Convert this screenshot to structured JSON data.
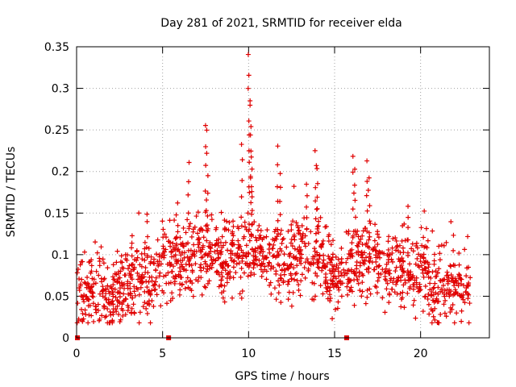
{
  "chart_data": {
    "type": "scatter",
    "title": "Day 281 of 2021, SRMTID for receiver elda",
    "xlabel": "GPS time / hours",
    "ylabel": "SRMTID / TECUs",
    "xlim": [
      0,
      24
    ],
    "ylim": [
      0,
      0.35
    ],
    "x_ticks": [
      0,
      5,
      10,
      15,
      20
    ],
    "x_tick_labels": [
      "0",
      "5",
      "10",
      "15",
      "20"
    ],
    "y_ticks": [
      0,
      0.05,
      0.1,
      0.15,
      0.2,
      0.25,
      0.3,
      0.35
    ],
    "y_tick_labels": [
      "0",
      "0.05",
      "0.1",
      "0.15",
      "0.2",
      "0.25",
      "0.3",
      "0.35"
    ],
    "grid": true,
    "marker": "plus",
    "color": "#e00000",
    "x_end_hours": 22.9,
    "zero_value_hours": [
      0.05,
      5.35,
      15.7
    ],
    "baseline_profile": {
      "x": [
        0,
        1,
        2,
        3,
        4,
        5,
        6,
        7,
        8,
        9,
        10,
        11,
        12,
        13,
        14,
        15,
        16,
        17,
        18,
        19,
        20,
        21,
        22,
        22.9
      ],
      "y": [
        0.05,
        0.055,
        0.05,
        0.065,
        0.07,
        0.085,
        0.09,
        0.095,
        0.1,
        0.095,
        0.105,
        0.1,
        0.09,
        0.1,
        0.1,
        0.07,
        0.085,
        0.09,
        0.085,
        0.08,
        0.07,
        0.065,
        0.06,
        0.055
      ]
    },
    "spikes": [
      {
        "x": 3.2,
        "y": 0.125
      },
      {
        "x": 4.1,
        "y": 0.15
      },
      {
        "x": 5.0,
        "y": 0.14
      },
      {
        "x": 6.5,
        "y": 0.21
      },
      {
        "x": 7.5,
        "y": 0.258
      },
      {
        "x": 7.6,
        "y": 0.248
      },
      {
        "x": 9.6,
        "y": 0.235
      },
      {
        "x": 10.0,
        "y": 0.34
      },
      {
        "x": 10.05,
        "y": 0.315
      },
      {
        "x": 10.1,
        "y": 0.285
      },
      {
        "x": 10.15,
        "y": 0.242
      },
      {
        "x": 10.2,
        "y": 0.2
      },
      {
        "x": 11.7,
        "y": 0.23
      },
      {
        "x": 11.85,
        "y": 0.2
      },
      {
        "x": 13.4,
        "y": 0.185
      },
      {
        "x": 13.9,
        "y": 0.225
      },
      {
        "x": 14.0,
        "y": 0.205
      },
      {
        "x": 16.1,
        "y": 0.22
      },
      {
        "x": 16.2,
        "y": 0.205
      },
      {
        "x": 16.9,
        "y": 0.21
      },
      {
        "x": 17.0,
        "y": 0.195
      },
      {
        "x": 19.3,
        "y": 0.158
      },
      {
        "x": 20.2,
        "y": 0.12
      }
    ]
  }
}
